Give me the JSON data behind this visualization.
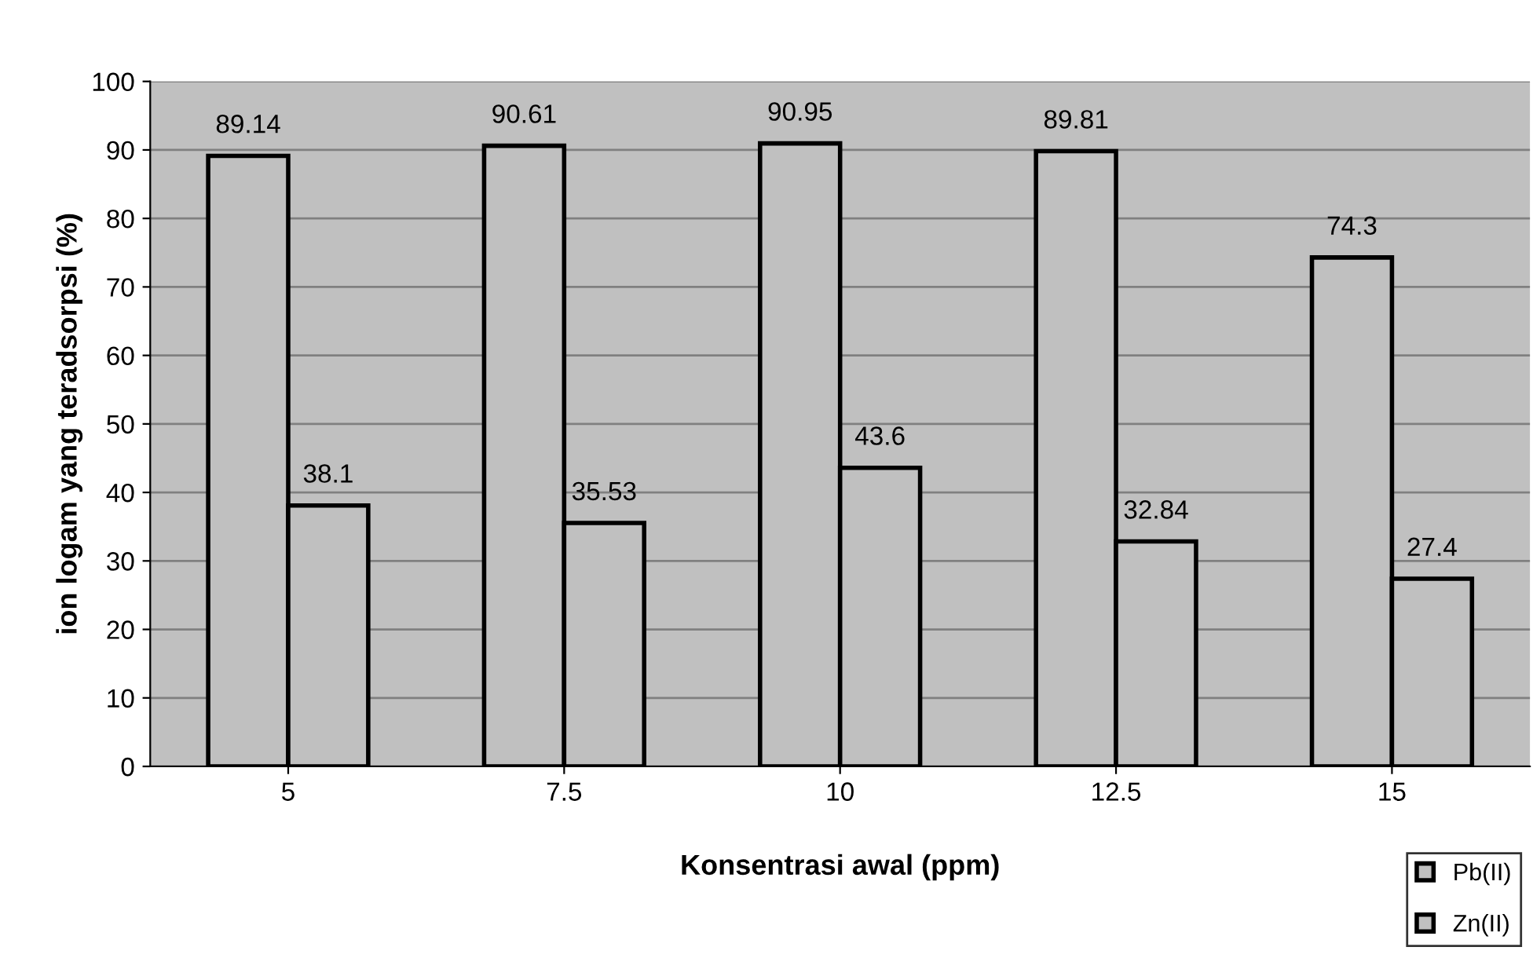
{
  "chart_data": {
    "type": "bar",
    "xlabel": "Konsentrasi awal (ppm)",
    "ylabel": "ion logam yang teradsorpsi (%)",
    "categories": [
      "5",
      "7.5",
      "10",
      "12.5",
      "15"
    ],
    "series": [
      {
        "name": "Pb(II)",
        "color": "#c0c0c0",
        "values": [
          89.14,
          90.61,
          90.95,
          89.81,
          74.3
        ]
      },
      {
        "name": "Zn(II)",
        "color": "#c0c0c0",
        "values": [
          38.1,
          35.53,
          43.6,
          32.84,
          27.4
        ]
      }
    ],
    "ylim": [
      0,
      100
    ],
    "yticks": [
      0,
      10,
      20,
      30,
      40,
      50,
      60,
      70,
      80,
      90,
      100
    ],
    "grid": "y",
    "legend": "bottom right",
    "data_labels": true
  }
}
